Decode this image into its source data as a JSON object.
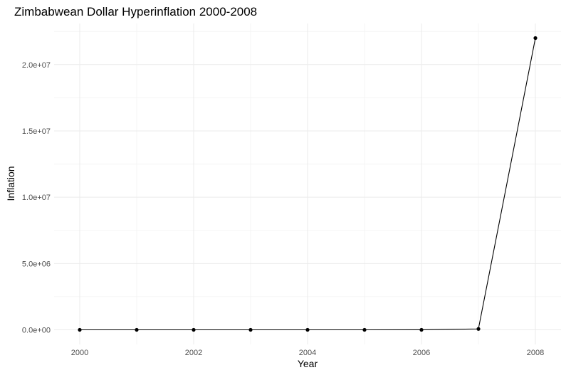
{
  "chart_data": {
    "type": "line",
    "title": "Zimbabwean Dollar Hyperinflation 2000-2008",
    "xlabel": "Year",
    "ylabel": "Inflation",
    "x": [
      2000,
      2001,
      2002,
      2003,
      2004,
      2005,
      2006,
      2007,
      2008
    ],
    "series": [
      {
        "values": [
          56,
          132,
          140,
          599,
          133,
          586,
          1281,
          66212,
          22000000
        ]
      }
    ],
    "xlim": [
      1999.55,
      2008.45
    ],
    "ylim": [
      -1100000,
      23100000
    ],
    "x_ticks": [
      2000,
      2002,
      2004,
      2006,
      2008
    ],
    "x_tick_labels": [
      "2000",
      "2002",
      "2004",
      "2006",
      "2008"
    ],
    "y_ticks": [
      0,
      5000000,
      10000000,
      15000000,
      20000000
    ],
    "y_tick_labels": [
      "0.0e+00",
      "5.0e+06",
      "1.0e+07",
      "1.5e+07",
      "2.0e+07"
    ],
    "grid": true,
    "legend": "none",
    "colors": {
      "line": "#000000",
      "grid_major": "#ebebeb",
      "grid_minor": "#f2f2f2",
      "background": "#ffffff"
    }
  }
}
